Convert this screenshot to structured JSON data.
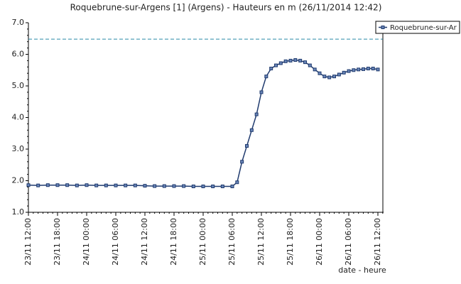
{
  "chart_data": {
    "type": "line",
    "title": "Roquebrune-sur-Argens [1] (Argens) - Hauteurs en m (26/11/2014 12:42)",
    "x_label": "date - heure",
    "x": [
      "23/11 12:00",
      "23/11 14:00",
      "23/11 16:00",
      "23/11 18:00",
      "23/11 20:00",
      "23/11 22:00",
      "24/11 00:00",
      "24/11 02:00",
      "24/11 04:00",
      "24/11 06:00",
      "24/11 08:00",
      "24/11 10:00",
      "24/11 12:00",
      "24/11 14:00",
      "24/11 16:00",
      "24/11 18:00",
      "24/11 20:00",
      "24/11 22:00",
      "25/11 00:00",
      "25/11 02:00",
      "25/11 04:00",
      "25/11 06:00",
      "25/11 07:00",
      "25/11 08:00",
      "25/11 09:00",
      "25/11 10:00",
      "25/11 11:00",
      "25/11 12:00",
      "25/11 13:00",
      "25/11 14:00",
      "25/11 15:00",
      "25/11 16:00",
      "25/11 17:00",
      "25/11 18:00",
      "25/11 19:00",
      "25/11 20:00",
      "25/11 21:00",
      "25/11 22:00",
      "25/11 23:00",
      "26/11 00:00",
      "26/11 01:00",
      "26/11 02:00",
      "26/11 03:00",
      "26/11 04:00",
      "26/11 05:00",
      "26/11 06:00",
      "26/11 07:00",
      "26/11 08:00",
      "26/11 09:00",
      "26/11 10:00",
      "26/11 11:00",
      "26/11 12:00"
    ],
    "series": [
      {
        "name": "Roquebrune-sur-Ar",
        "color": "#1f3a6e",
        "values": [
          1.86,
          1.85,
          1.86,
          1.86,
          1.86,
          1.85,
          1.86,
          1.85,
          1.85,
          1.85,
          1.85,
          1.85,
          1.84,
          1.83,
          1.83,
          1.83,
          1.83,
          1.82,
          1.82,
          1.82,
          1.82,
          1.82,
          1.95,
          2.6,
          3.1,
          3.6,
          4.1,
          4.8,
          5.3,
          5.55,
          5.65,
          5.72,
          5.78,
          5.8,
          5.82,
          5.8,
          5.75,
          5.65,
          5.52,
          5.4,
          5.3,
          5.27,
          5.3,
          5.36,
          5.42,
          5.47,
          5.5,
          5.52,
          5.53,
          5.55,
          5.55,
          5.52
        ]
      }
    ],
    "threshold": 6.48,
    "threshold_color": "#2a8aa8",
    "xlim": [
      "23/11 12:00",
      "26/11 13:00"
    ],
    "xticks": [
      "23/11 12:00",
      "23/11 18:00",
      "24/11 00:00",
      "24/11 06:00",
      "24/11 12:00",
      "24/11 18:00",
      "25/11 00:00",
      "25/11 06:00",
      "25/11 12:00",
      "25/11 18:00",
      "26/11 00:00",
      "26/11 06:00",
      "26/11 12:00"
    ],
    "ylim": [
      1,
      7
    ],
    "yticks": [
      {
        "value": 1,
        "label": "1.0"
      },
      {
        "value": 2,
        "label": "2.0"
      },
      {
        "value": 3,
        "label": "3.0"
      },
      {
        "value": 4,
        "label": "4.0"
      },
      {
        "value": 5,
        "label": "5.0"
      },
      {
        "value": 6,
        "label": "6.0"
      },
      {
        "value": 7,
        "label": "7.0"
      }
    ],
    "legend": "top-right"
  }
}
